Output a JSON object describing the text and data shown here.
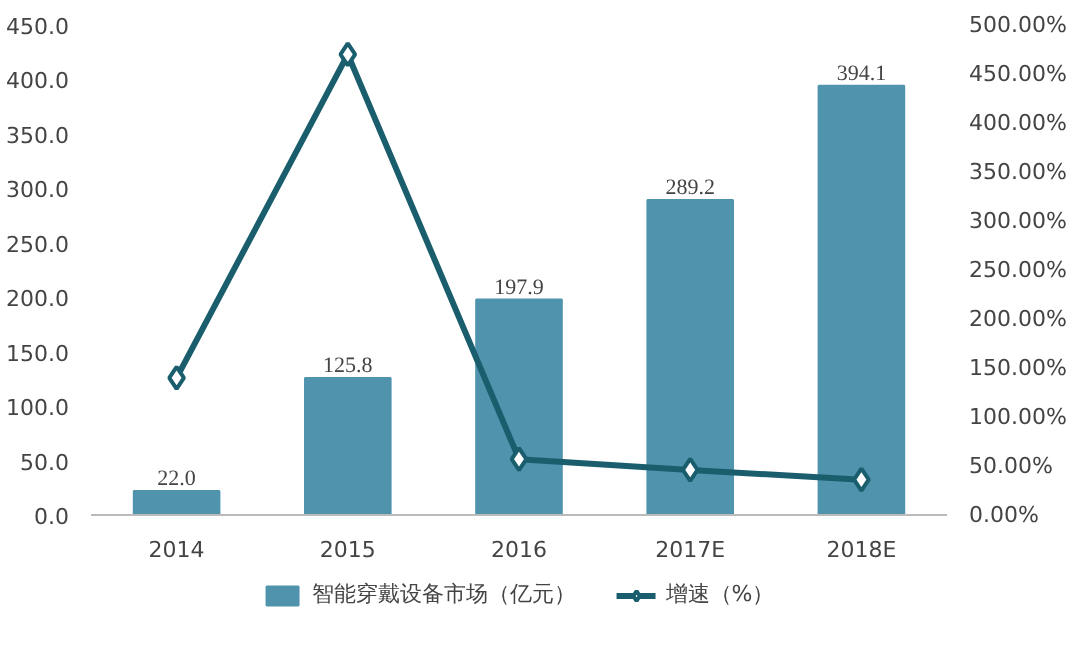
{
  "chart_data": {
    "type": "bar",
    "categories": [
      "2014",
      "2015",
      "2016",
      "2017E",
      "2018E"
    ],
    "series": [
      {
        "name": "智能穿戴设备市场（亿元）",
        "color": "#4f93ad",
        "values": [
          22.0,
          125.8,
          197.9,
          289.2,
          394.1
        ],
        "value_labels": [
          "22.0",
          "125.8",
          "197.9",
          "289.2",
          "394.1"
        ]
      },
      {
        "name": "增速（%）",
        "type": "line",
        "axis": "y2",
        "color": "#1a5e6e",
        "values": [
          140,
          470,
          57,
          46,
          36
        ]
      }
    ],
    "ylim": [
      0,
      450
    ],
    "yticks": [
      {
        "value": 0,
        "label": "0.0"
      },
      {
        "value": 50,
        "label": "50.0"
      },
      {
        "value": 100,
        "label": "100.0"
      },
      {
        "value": 150,
        "label": "150.0"
      },
      {
        "value": 200,
        "label": "200.0"
      },
      {
        "value": 250,
        "label": "250.0"
      },
      {
        "value": 300,
        "label": "300.0"
      },
      {
        "value": 350,
        "label": "350.0"
      },
      {
        "value": 400,
        "label": "400.0"
      },
      {
        "value": 450,
        "label": "450.0"
      }
    ],
    "y2lim": [
      0,
      500
    ],
    "y2ticks": [
      {
        "value": 0,
        "label": "0.00%"
      },
      {
        "value": 50,
        "label": "50.00%"
      },
      {
        "value": 100,
        "label": "100.00%"
      },
      {
        "value": 150,
        "label": "150.00%"
      },
      {
        "value": 200,
        "label": "200.00%"
      },
      {
        "value": 250,
        "label": "250.00%"
      },
      {
        "value": 300,
        "label": "300.00%"
      },
      {
        "value": 350,
        "label": "350.00%"
      },
      {
        "value": 400,
        "label": "400.00%"
      },
      {
        "value": 450,
        "label": "450.00%"
      },
      {
        "value": 500,
        "label": "500.00%"
      }
    ],
    "marker": "diamond",
    "grid": false,
    "legend": "bottom"
  }
}
